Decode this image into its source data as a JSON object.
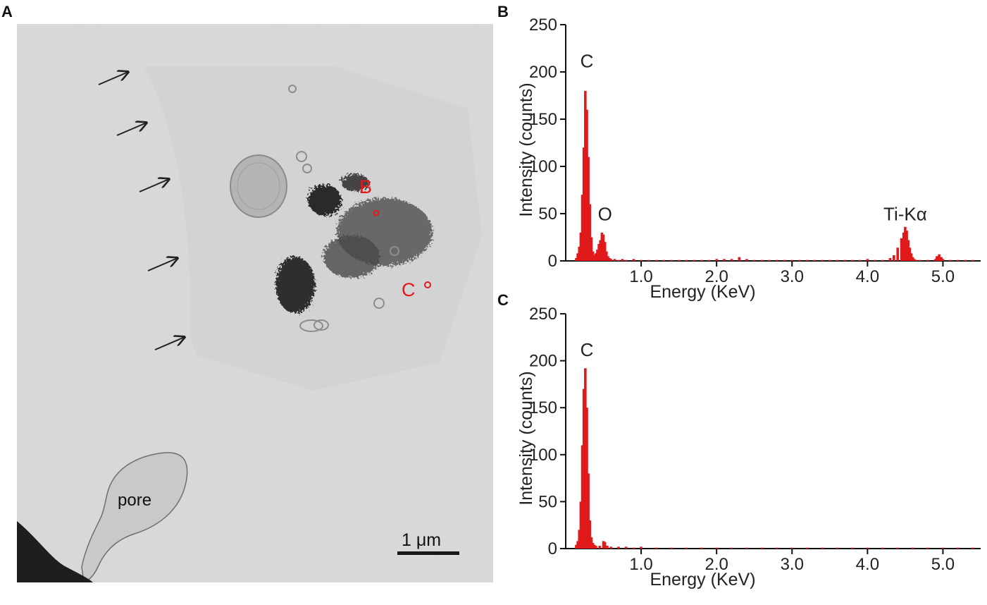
{
  "panels": {
    "a": {
      "letter": "A"
    },
    "b": {
      "letter": "B"
    },
    "c": {
      "letter": "C"
    }
  },
  "micrograph": {
    "labels": {
      "point_b": "B",
      "point_c": "C",
      "pore": "pore",
      "scale_bar": "1 μm"
    },
    "marker_color": "#e0191b"
  },
  "colors": {
    "spectrum": "#e0191b",
    "axis": "#111111"
  },
  "chart_data": [
    {
      "type": "bar",
      "panel": "B",
      "xlabel": "Energy (KeV)",
      "ylabel": "Intensity (counts)",
      "xlim": [
        0,
        5.5
      ],
      "ylim": [
        0,
        250
      ],
      "xticks": [
        1.0,
        2.0,
        3.0,
        4.0,
        5.0
      ],
      "xtick_labels": [
        "1.0",
        "2.0",
        "3.0",
        "4.0",
        "5.0"
      ],
      "yticks": [
        0,
        50,
        100,
        150,
        200,
        250
      ],
      "ytick_labels": [
        "0",
        "50",
        "100",
        "150",
        "200",
        "250"
      ],
      "annotations": [
        {
          "text": "C",
          "x": 0.28,
          "y": 205
        },
        {
          "text": "O",
          "x": 0.52,
          "y": 43
        },
        {
          "text": "Ti-Kα",
          "x": 4.5,
          "y": 43
        }
      ],
      "series": [
        {
          "x": [
            0.14,
            0.16,
            0.18,
            0.2,
            0.22,
            0.24,
            0.26,
            0.28,
            0.3,
            0.32,
            0.34,
            0.36,
            0.38,
            0.4,
            0.42,
            0.44,
            0.46,
            0.48,
            0.5,
            0.52,
            0.54,
            0.56,
            0.58,
            0.6,
            0.65,
            0.7,
            0.75,
            0.8,
            0.9,
            1.0,
            1.1,
            1.2,
            1.3,
            1.4,
            1.5,
            1.6,
            1.7,
            1.8,
            1.9,
            2.0,
            2.1,
            2.2,
            2.3,
            2.4,
            2.5,
            2.6,
            2.7,
            2.8,
            2.9,
            3.0,
            3.1,
            3.2,
            3.3,
            3.4,
            3.5,
            3.6,
            3.7,
            3.8,
            3.9,
            4.0,
            4.1,
            4.2,
            4.3,
            4.35,
            4.4,
            4.45,
            4.48,
            4.5,
            4.52,
            4.54,
            4.56,
            4.58,
            4.6,
            4.62,
            4.65,
            4.7,
            4.8,
            4.9,
            4.92,
            4.95,
            4.98,
            5.0,
            5.1,
            5.2,
            5.3,
            5.4
          ],
          "values": [
            3,
            8,
            15,
            30,
            70,
            120,
            180,
            160,
            110,
            60,
            25,
            10,
            6,
            8,
            12,
            18,
            22,
            30,
            28,
            20,
            10,
            5,
            3,
            2,
            2,
            1,
            2,
            1,
            2,
            1,
            1,
            1,
            1,
            1,
            1,
            1,
            1,
            1,
            1,
            2,
            2,
            2,
            4,
            2,
            1,
            1,
            1,
            1,
            1,
            1,
            1,
            1,
            1,
            1,
            1,
            1,
            1,
            1,
            1,
            2,
            1,
            1,
            3,
            6,
            14,
            24,
            30,
            36,
            32,
            22,
            14,
            8,
            4,
            2,
            1,
            1,
            1,
            2,
            5,
            7,
            4,
            2,
            1,
            1,
            1,
            1
          ]
        }
      ]
    },
    {
      "type": "bar",
      "panel": "C",
      "xlabel": "Energy (KeV)",
      "ylabel": "Intensity (counts)",
      "xlim": [
        0,
        5.5
      ],
      "ylim": [
        0,
        250
      ],
      "xticks": [
        1.0,
        2.0,
        3.0,
        4.0,
        5.0
      ],
      "xtick_labels": [
        "1.0",
        "2.0",
        "3.0",
        "4.0",
        "5.0"
      ],
      "yticks": [
        0,
        50,
        100,
        150,
        200,
        250
      ],
      "ytick_labels": [
        "0",
        "50",
        "100",
        "150",
        "200",
        "250"
      ],
      "annotations": [
        {
          "text": "C",
          "x": 0.28,
          "y": 205
        }
      ],
      "series": [
        {
          "x": [
            0.14,
            0.16,
            0.18,
            0.2,
            0.22,
            0.24,
            0.26,
            0.28,
            0.3,
            0.32,
            0.34,
            0.36,
            0.38,
            0.4,
            0.45,
            0.5,
            0.52,
            0.55,
            0.6,
            0.7,
            0.8,
            0.9,
            1.0,
            1.2,
            1.4,
            1.6,
            1.8,
            2.0,
            2.2,
            2.4,
            2.6,
            2.8,
            3.0,
            3.2,
            3.4,
            3.6,
            3.8,
            4.0,
            4.2,
            4.4,
            4.6,
            4.8,
            5.0,
            5.2,
            5.4
          ],
          "values": [
            4,
            8,
            20,
            50,
            110,
            170,
            192,
            150,
            80,
            30,
            12,
            6,
            4,
            3,
            3,
            8,
            7,
            3,
            2,
            2,
            2,
            1,
            2,
            1,
            1,
            1,
            1,
            1,
            1,
            1,
            1,
            1,
            1,
            1,
            1,
            1,
            1,
            1,
            1,
            1,
            1,
            1,
            1,
            1,
            1
          ]
        }
      ]
    }
  ]
}
